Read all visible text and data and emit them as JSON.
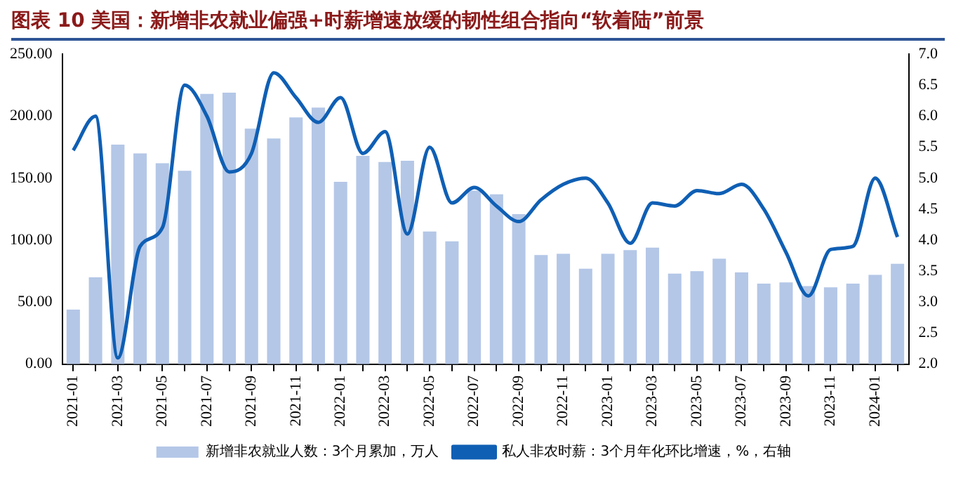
{
  "chart_data": {
    "type": "bar",
    "title": "图表 10   美国：新增非农就业偏强+时薪增速放缓的韧性组合指向“软着陆”前景",
    "categories": [
      "2021-01",
      null,
      "2021-03",
      null,
      "2021-05",
      null,
      "2021-07",
      null,
      "2021-09",
      null,
      "2021-11",
      null,
      "2022-01",
      null,
      "2022-03",
      null,
      "2022-05",
      null,
      "2022-07",
      null,
      "2022-09",
      null,
      "2022-11",
      null,
      "2023-01",
      null,
      "2023-03",
      null,
      "2023-05",
      null,
      "2023-07",
      null,
      "2023-09",
      null,
      "2023-11",
      null,
      "2024-01",
      null
    ],
    "series": [
      {
        "name": "新增非农就业人数：3个月累加，万人",
        "color": "#b4c7e7",
        "values": [
          44,
          70,
          177,
          170,
          162,
          156,
          218,
          219,
          190,
          182,
          199,
          207,
          147,
          168,
          163,
          164,
          107,
          99,
          140,
          137,
          121,
          88,
          89,
          77,
          89,
          92,
          94,
          73,
          75,
          85,
          74,
          65,
          66,
          63,
          62,
          65,
          72,
          81
        ]
      },
      {
        "name": "私人非农时薪：3个月年化环比增速，%，右轴",
        "type": "line",
        "axis": "y2",
        "color": "#0f5fb4",
        "values": [
          5.45,
          6.0,
          2.1,
          3.9,
          4.2,
          6.5,
          6.0,
          5.1,
          5.4,
          6.7,
          6.3,
          5.9,
          6.3,
          5.4,
          5.75,
          4.1,
          5.5,
          4.6,
          4.85,
          4.55,
          4.3,
          4.65,
          4.9,
          5.0,
          4.6,
          3.95,
          4.6,
          4.55,
          4.8,
          4.75,
          4.9,
          4.5,
          3.8,
          3.1,
          3.85,
          3.9,
          5.0,
          4.05
        ]
      }
    ],
    "ylim": [
      0,
      250
    ],
    "yticks": [
      {
        "value": 0,
        "label": "0.00"
      },
      {
        "value": 50,
        "label": "50.00"
      },
      {
        "value": 100,
        "label": "100.00"
      },
      {
        "value": 150,
        "label": "150.00"
      },
      {
        "value": 200,
        "label": "200.00"
      },
      {
        "value": 250,
        "label": "250.00"
      }
    ],
    "y2lim": [
      2,
      7
    ],
    "y2ticks": [
      {
        "value": 2,
        "label": "2.0"
      },
      {
        "value": 2.5,
        "label": "2.5"
      },
      {
        "value": 3,
        "label": "3.0"
      },
      {
        "value": 3.5,
        "label": "3.5"
      },
      {
        "value": 4,
        "label": "4.0"
      },
      {
        "value": 4.5,
        "label": "4.5"
      },
      {
        "value": 5,
        "label": "5.0"
      },
      {
        "value": 5.5,
        "label": "5.5"
      },
      {
        "value": 6,
        "label": "6.0"
      },
      {
        "value": 6.5,
        "label": "6.5"
      },
      {
        "value": 7,
        "label": "7.0"
      }
    ],
    "grid": false,
    "legend": "bottom",
    "marker": "none"
  }
}
